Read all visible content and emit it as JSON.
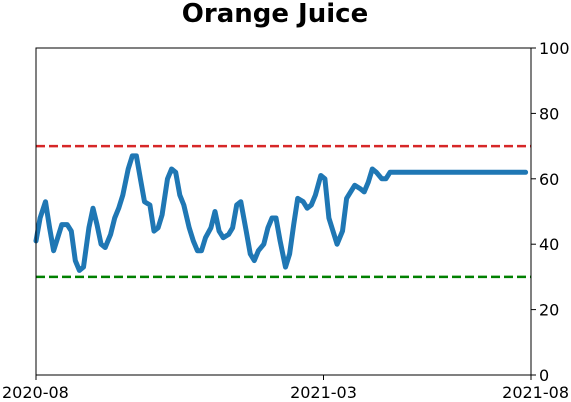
{
  "chart_data": {
    "type": "line",
    "title": "Orange Juice",
    "xlabel": "",
    "ylabel": "",
    "x_ticks": [
      "2020-08",
      "2021-03",
      "2021-08"
    ],
    "x_range": [
      "2020-08",
      "2021-08"
    ],
    "ylim": [
      0,
      100
    ],
    "y_ticks": [
      0,
      20,
      40,
      60,
      80,
      100
    ],
    "y_axis_side": "right",
    "grid": false,
    "reference_lines": [
      {
        "y": 70,
        "color": "#d62728",
        "style": "dashed"
      },
      {
        "y": 30,
        "color": "#008000",
        "style": "dashed"
      }
    ],
    "series": [
      {
        "color": "#1f77b4",
        "x": [
          "2020-08-01",
          "2020-08-04",
          "2020-08-08",
          "2020-08-11",
          "2020-08-14",
          "2020-08-17",
          "2020-08-20",
          "2020-08-24",
          "2020-08-27",
          "2020-08-30",
          "2020-09-02",
          "2020-09-05",
          "2020-09-09",
          "2020-09-12",
          "2020-09-15",
          "2020-09-18",
          "2020-09-21",
          "2020-09-25",
          "2020-09-28",
          "2020-10-01",
          "2020-10-04",
          "2020-10-08",
          "2020-10-11",
          "2020-10-14",
          "2020-10-17",
          "2020-10-20",
          "2020-10-24",
          "2020-10-27",
          "2020-10-30",
          "2020-11-02",
          "2020-11-06",
          "2020-11-09",
          "2020-11-12",
          "2020-11-15",
          "2020-11-18",
          "2020-11-22",
          "2020-11-25",
          "2020-11-28",
          "2020-12-01",
          "2020-12-04",
          "2020-12-08",
          "2020-12-11",
          "2020-12-14",
          "2020-12-17",
          "2020-12-21",
          "2020-12-24",
          "2020-12-27",
          "2020-12-30",
          "2021-01-03",
          "2021-01-06",
          "2021-01-09",
          "2021-01-12",
          "2021-01-16",
          "2021-01-19",
          "2021-01-22",
          "2021-01-25",
          "2021-01-28",
          "2021-02-01",
          "2021-02-04",
          "2021-02-07",
          "2021-02-10",
          "2021-02-14",
          "2021-02-17",
          "2021-02-20",
          "2021-02-23",
          "2021-02-27",
          "2021-03-02",
          "2021-03-05",
          "2021-03-08",
          "2021-03-11",
          "2021-03-15",
          "2021-03-18",
          "2021-03-21",
          "2021-03-24",
          "2021-03-28",
          "2021-03-31",
          "2021-04-03",
          "2021-04-06",
          "2021-04-09",
          "2021-04-13",
          "2021-04-16",
          "2021-04-19",
          "2021-04-22",
          "2021-04-26",
          "2021-04-29",
          "2021-05-02",
          "2021-05-05",
          "2021-05-08",
          "2021-05-12",
          "2021-05-15",
          "2021-05-18",
          "2021-05-21",
          "2021-05-25",
          "2021-05-28",
          "2021-05-31",
          "2021-06-03",
          "2021-06-07",
          "2021-06-10",
          "2021-06-13",
          "2021-06-16",
          "2021-06-19",
          "2021-06-23",
          "2021-06-26",
          "2021-06-29",
          "2021-07-02",
          "2021-07-05",
          "2021-07-09",
          "2021-07-12",
          "2021-07-15",
          "2021-07-18",
          "2021-07-22",
          "2021-07-25",
          "2021-07-28"
        ],
        "values": [
          41,
          48,
          53,
          45,
          38,
          42,
          46,
          46,
          44,
          35,
          32,
          33,
          45,
          51,
          46,
          40,
          39,
          43,
          48,
          51,
          55,
          63,
          67,
          67,
          60,
          53,
          52,
          44,
          45,
          49,
          60,
          63,
          62,
          55,
          52,
          45,
          41,
          38,
          38,
          42,
          45,
          50,
          44,
          42,
          43,
          45,
          52,
          53,
          44,
          37,
          35,
          38,
          40,
          45,
          48,
          48,
          41,
          33,
          37,
          46,
          54,
          53,
          51,
          52,
          55,
          61,
          60,
          48,
          44,
          40,
          44,
          54,
          56,
          58,
          57,
          56,
          59,
          63,
          62,
          60,
          60,
          62,
          62,
          62,
          62,
          62,
          62,
          62,
          62,
          62,
          62,
          62,
          62,
          62,
          62,
          62,
          62,
          62,
          62,
          62,
          62,
          62,
          62,
          62,
          62,
          62,
          62,
          62,
          62,
          62,
          62,
          62,
          62
        ]
      }
    ]
  }
}
